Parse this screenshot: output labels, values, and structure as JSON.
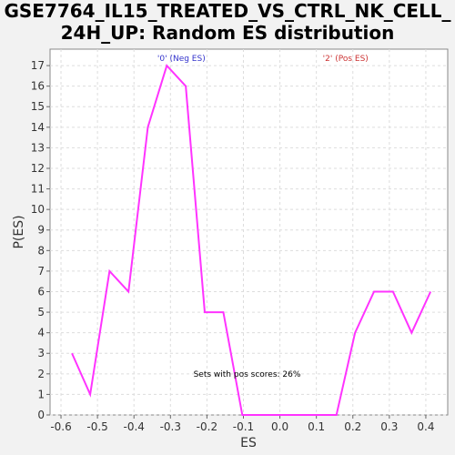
{
  "chart_data": {
    "type": "line",
    "title_line1": "GSE7764_IL15_TREATED_VS_CTRL_NK_CELL_",
    "title_line2": "24H_UP: Random ES distribution",
    "xlabel": "ES",
    "ylabel": "P(ES)",
    "xlim": [
      -0.63,
      0.46
    ],
    "ylim": [
      0,
      17.8
    ],
    "grid": true,
    "xticks": [
      "-0.6",
      "-0.5",
      "-0.4",
      "-0.3",
      "-0.2",
      "-0.1",
      "0.0",
      "0.1",
      "0.2",
      "0.3",
      "0.4"
    ],
    "xtick_values": [
      -0.6,
      -0.5,
      -0.4,
      -0.3,
      -0.2,
      -0.1,
      0.0,
      0.1,
      0.2,
      0.3,
      0.4
    ],
    "yticks": [
      "0",
      "1",
      "2",
      "3",
      "4",
      "5",
      "6",
      "7",
      "8",
      "9",
      "10",
      "11",
      "12",
      "13",
      "14",
      "15",
      "16",
      "17"
    ],
    "ytick_values": [
      0,
      1,
      2,
      3,
      4,
      5,
      6,
      7,
      8,
      9,
      10,
      11,
      12,
      13,
      14,
      15,
      16,
      17
    ],
    "series": [
      {
        "color": "#ff33ff",
        "x": [
          -0.57,
          -0.52,
          -0.467,
          -0.415,
          -0.362,
          -0.31,
          -0.258,
          -0.206,
          -0.155,
          -0.103,
          -0.051,
          0.0,
          0.052,
          0.103,
          0.155,
          0.206,
          0.258,
          0.31,
          0.361,
          0.413
        ],
        "y": [
          3,
          1,
          7,
          6,
          14,
          17,
          16,
          5,
          5,
          0,
          0,
          0,
          0,
          0,
          0,
          4,
          6,
          6,
          4,
          6
        ]
      }
    ],
    "annotations": {
      "neg_label": "'0' (Neg ES)",
      "neg_x": -0.27,
      "neg_color": "#3333cc",
      "pos_label": "'2' (Pos ES)",
      "pos_x": 0.18,
      "pos_color": "#cc3333",
      "pos_scores_text": "Sets with pos scores: 26%",
      "pos_scores_x": -0.09,
      "pos_scores_y": 2
    }
  }
}
